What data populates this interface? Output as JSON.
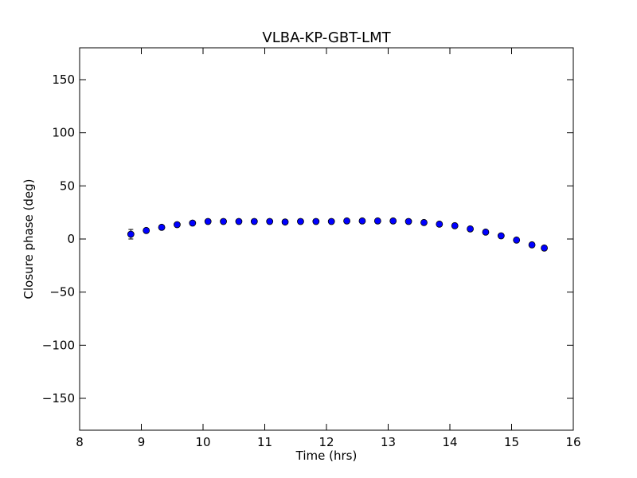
{
  "chart_data": {
    "type": "scatter",
    "title": "VLBA-KP-GBT-LMT",
    "xlabel": "Time (hrs)",
    "ylabel": "Closure phase (deg)",
    "xlim": [
      8,
      16
    ],
    "ylim": [
      -180,
      180
    ],
    "xticks": [
      8,
      9,
      10,
      11,
      12,
      13,
      14,
      15,
      16
    ],
    "yticks": [
      150,
      100,
      50,
      0,
      -50,
      -100,
      -150
    ],
    "ytick_labels": [
      "150",
      "100",
      "50",
      "0",
      "−50",
      "−100",
      "−150"
    ],
    "grid": false,
    "marker_color": "#0000ff",
    "points": [
      {
        "x": 8.83,
        "y": 4.5,
        "err": 4.5
      },
      {
        "x": 9.08,
        "y": 8.0,
        "err": 1.5
      },
      {
        "x": 9.33,
        "y": 11.0,
        "err": 1.5
      },
      {
        "x": 9.58,
        "y": 13.5,
        "err": 1.5
      },
      {
        "x": 9.83,
        "y": 15.0,
        "err": 1.5
      },
      {
        "x": 10.08,
        "y": 16.5,
        "err": 1.5
      },
      {
        "x": 10.33,
        "y": 16.5,
        "err": 1.5
      },
      {
        "x": 10.58,
        "y": 16.5,
        "err": 1.5
      },
      {
        "x": 10.83,
        "y": 16.5,
        "err": 1.5
      },
      {
        "x": 11.08,
        "y": 16.5,
        "err": 1.5
      },
      {
        "x": 11.33,
        "y": 16.0,
        "err": 1.5
      },
      {
        "x": 11.58,
        "y": 16.5,
        "err": 1.5
      },
      {
        "x": 11.83,
        "y": 16.5,
        "err": 1.5
      },
      {
        "x": 12.08,
        "y": 16.5,
        "err": 1.5
      },
      {
        "x": 12.33,
        "y": 17.0,
        "err": 1.5
      },
      {
        "x": 12.58,
        "y": 17.0,
        "err": 1.5
      },
      {
        "x": 12.83,
        "y": 17.0,
        "err": 1.5
      },
      {
        "x": 13.08,
        "y": 17.0,
        "err": 1.5
      },
      {
        "x": 13.33,
        "y": 16.5,
        "err": 1.5
      },
      {
        "x": 13.58,
        "y": 15.5,
        "err": 1.5
      },
      {
        "x": 13.83,
        "y": 14.0,
        "err": 1.5
      },
      {
        "x": 14.08,
        "y": 12.5,
        "err": 1.5
      },
      {
        "x": 14.33,
        "y": 9.5,
        "err": 1.5
      },
      {
        "x": 14.58,
        "y": 6.5,
        "err": 1.5
      },
      {
        "x": 14.83,
        "y": 3.0,
        "err": 1.5
      },
      {
        "x": 15.08,
        "y": -1.0,
        "err": 1.5
      },
      {
        "x": 15.33,
        "y": -5.5,
        "err": 1.5
      },
      {
        "x": 15.53,
        "y": -8.5,
        "err": 2.0
      }
    ]
  }
}
